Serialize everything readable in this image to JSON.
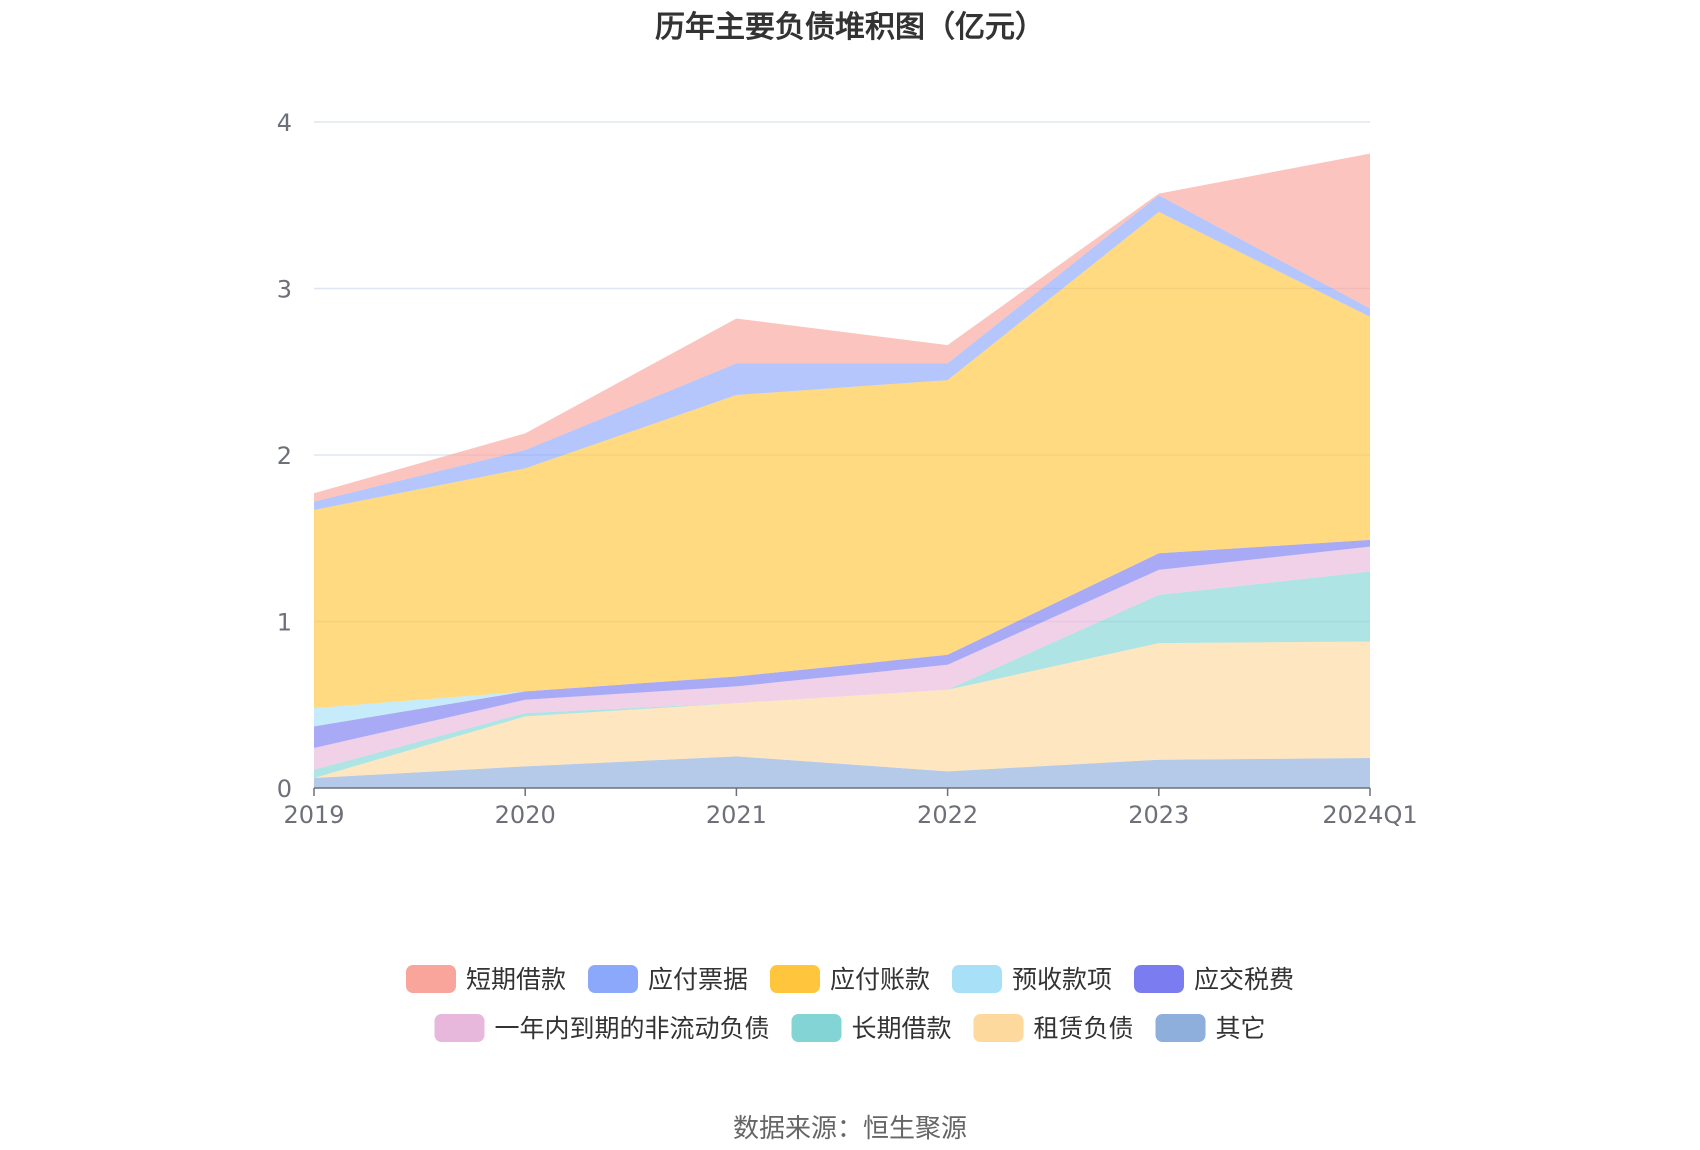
{
  "chart_data": {
    "type": "area",
    "stacked": true,
    "title": "历年主要负债堆积图（亿元）",
    "categories": [
      "2019",
      "2020",
      "2021",
      "2022",
      "2023",
      "2024Q1"
    ],
    "ylim": [
      0,
      4
    ],
    "yticks": [
      "0",
      "1",
      "2",
      "3",
      "4"
    ],
    "grid": true,
    "legend_position": "bottom",
    "series": [
      {
        "name": "其它",
        "color": "#8eaedb",
        "values": [
          0.06,
          0.13,
          0.19,
          0.1,
          0.17,
          0.18
        ]
      },
      {
        "name": "租赁负债",
        "color": "#fdd99e",
        "values": [
          0.0,
          0.3,
          0.32,
          0.49,
          0.7,
          0.7
        ]
      },
      {
        "name": "长期借款",
        "color": "#83d5d5",
        "values": [
          0.05,
          0.02,
          0.0,
          0.0,
          0.29,
          0.42
        ]
      },
      {
        "name": "一年内到期的非流动负债",
        "color": "#e8b8dc",
        "values": [
          0.13,
          0.08,
          0.1,
          0.15,
          0.15,
          0.15
        ]
      },
      {
        "name": "应交税费",
        "color": "#7b7cf0",
        "values": [
          0.13,
          0.05,
          0.06,
          0.06,
          0.1,
          0.04
        ]
      },
      {
        "name": "预收款项",
        "color": "#a8e0f8",
        "values": [
          0.11,
          0.0,
          0.0,
          0.0,
          0.0,
          0.0
        ]
      },
      {
        "name": "应付账款",
        "color": "#ffc63d",
        "values": [
          1.19,
          1.34,
          1.69,
          1.65,
          2.05,
          1.34
        ]
      },
      {
        "name": "应付票据",
        "color": "#8ca8fb",
        "values": [
          0.05,
          0.11,
          0.19,
          0.1,
          0.1,
          0.05
        ]
      },
      {
        "name": "短期借款",
        "color": "#faa59b",
        "values": [
          0.05,
          0.1,
          0.27,
          0.11,
          0.01,
          0.93
        ]
      }
    ],
    "legend_order": [
      "短期借款",
      "应付票据",
      "应付账款",
      "预收款项",
      "应交税费",
      "一年内到期的非流动负债",
      "长期借款",
      "租赁负债",
      "其它"
    ],
    "source": "数据来源：恒生聚源"
  }
}
